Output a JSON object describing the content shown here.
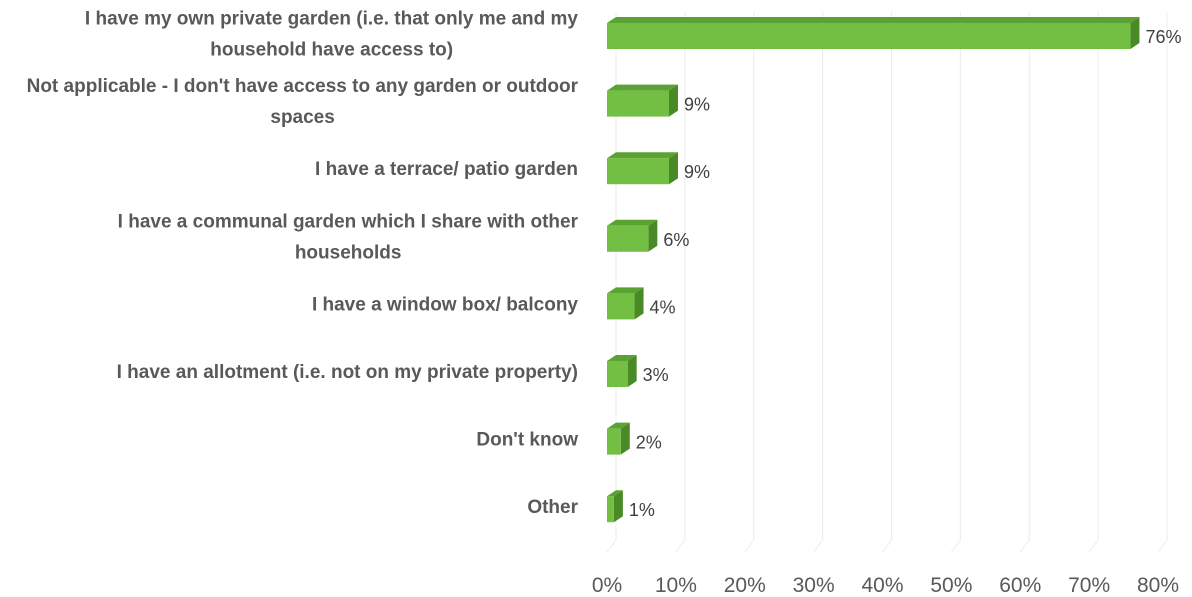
{
  "chart_data": {
    "type": "bar",
    "orientation": "horizontal",
    "style": "3d",
    "bar_color": "#72bf44",
    "bar_side_color": "#4a8a26",
    "bar_top_color": "#5aa332",
    "grid": true,
    "xlim": [
      0,
      80
    ],
    "x_ticks": [
      "0%",
      "10%",
      "20%",
      "30%",
      "40%",
      "50%",
      "60%",
      "70%",
      "80%"
    ],
    "categories": [
      [
        "I have my own private garden (i.e. that only me and my",
        "household have access to)"
      ],
      [
        "Not applicable - I don't have access to any garden or outdoor",
        "spaces"
      ],
      [
        "I have a terrace/ patio garden"
      ],
      [
        "I have a communal garden which I share with other",
        "households"
      ],
      [
        "I have a window box/ balcony"
      ],
      [
        "I have an allotment (i.e. not on my private property)"
      ],
      [
        "Don't know"
      ],
      [
        "Other"
      ]
    ],
    "values": [
      76,
      9,
      9,
      6,
      4,
      3,
      2,
      1
    ],
    "value_labels": [
      "76%",
      "9%",
      "9%",
      "6%",
      "4%",
      "3%",
      "2%",
      "1%"
    ]
  }
}
